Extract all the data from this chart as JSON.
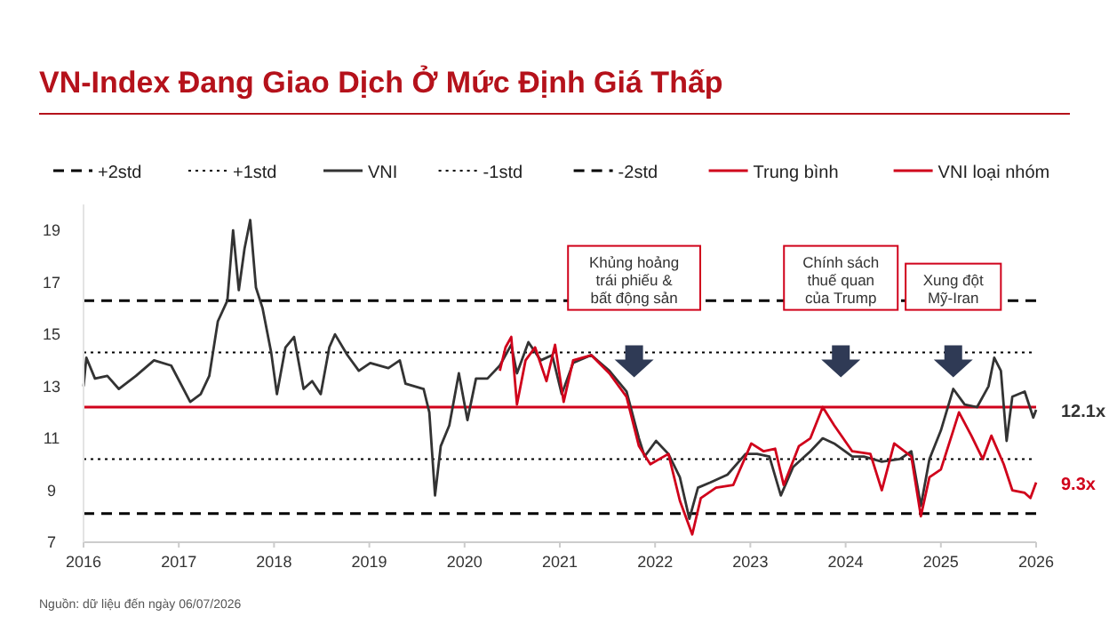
{
  "chart_data": {
    "type": "line",
    "title": "VN-Index Đang Giao Dịch Ở Mức Định Giá Thấp",
    "xlim": [
      2016,
      2026
    ],
    "xticks": [
      2016,
      2017,
      2018,
      2019,
      2020,
      2021,
      2022,
      2023,
      2024,
      2025,
      2026
    ],
    "ylim": [
      7,
      20
    ],
    "yticks": [
      7,
      9,
      11,
      13,
      15,
      17,
      19
    ],
    "grid": false,
    "legend": "top",
    "ref_lines": [
      {
        "axis": "y",
        "value": 16.3,
        "label": "+2std",
        "color": "#000000",
        "line_style": "dashed"
      },
      {
        "axis": "y",
        "value": 14.3,
        "label": "+1std",
        "color": "#000000",
        "line_style": "dotted"
      },
      {
        "axis": "y",
        "value": 10.2,
        "label": "-1std",
        "color": "#000000",
        "line_style": "dotted"
      },
      {
        "axis": "y",
        "value": 8.1,
        "label": "-2std",
        "color": "#000000",
        "line_style": "dashed"
      },
      {
        "axis": "y",
        "value": 12.2,
        "label": "Trung bình",
        "color": "#d0021b",
        "line_style": "solid"
      }
    ],
    "series": [
      {
        "name": "VNI",
        "color": "#333333",
        "x": [
          2016.0,
          2016.03,
          2016.12,
          2016.25,
          2016.37,
          2016.55,
          2016.74,
          2016.92,
          2017.12,
          2017.23,
          2017.32,
          2017.41,
          2017.51,
          2017.57,
          2017.63,
          2017.69,
          2017.75,
          2017.81,
          2017.88,
          2017.97,
          2018.03,
          2018.12,
          2018.21,
          2018.31,
          2018.4,
          2018.49,
          2018.58,
          2018.64,
          2018.77,
          2018.89,
          2019.01,
          2019.2,
          2019.32,
          2019.38,
          2019.57,
          2019.63,
          2019.69,
          2019.75,
          2019.84,
          2019.94,
          2020.03,
          2020.12,
          2020.24,
          2020.37,
          2020.49,
          2020.55,
          2020.67,
          2020.8,
          2020.92,
          2021.02,
          2021.14,
          2021.33,
          2021.52,
          2021.7,
          2021.83,
          2021.89,
          2022.01,
          2022.14,
          2022.26,
          2022.36,
          2022.45,
          2022.58,
          2022.76,
          2022.95,
          2023.07,
          2023.2,
          2023.32,
          2023.45,
          2023.63,
          2023.76,
          2023.88,
          2024.07,
          2024.19,
          2024.38,
          2024.57,
          2024.69,
          2024.79,
          2024.88,
          2025.0,
          2025.13,
          2025.25,
          2025.38,
          2025.5,
          2025.56,
          2025.63,
          2025.69,
          2025.75,
          2025.88,
          2025.97,
          2026.0
        ],
        "values": [
          13.0,
          14.1,
          13.3,
          13.4,
          12.9,
          13.4,
          14.0,
          13.8,
          12.4,
          12.7,
          13.4,
          15.5,
          16.3,
          19.0,
          16.7,
          18.3,
          19.4,
          16.8,
          16.0,
          14.3,
          12.7,
          14.5,
          14.9,
          12.9,
          13.2,
          12.7,
          14.5,
          15.0,
          14.2,
          13.6,
          13.9,
          13.7,
          14.0,
          13.1,
          12.9,
          12.0,
          8.8,
          10.7,
          11.5,
          13.5,
          11.7,
          13.3,
          13.3,
          13.8,
          14.6,
          13.5,
          14.7,
          14.0,
          14.2,
          12.7,
          13.9,
          14.2,
          13.6,
          12.8,
          11.0,
          10.3,
          10.9,
          10.4,
          9.5,
          7.9,
          9.1,
          9.3,
          9.6,
          10.4,
          10.4,
          10.3,
          8.8,
          9.9,
          10.5,
          11.0,
          10.8,
          10.3,
          10.3,
          10.1,
          10.2,
          10.5,
          8.4,
          10.2,
          11.3,
          12.9,
          12.3,
          12.2,
          13.0,
          14.1,
          13.6,
          10.9,
          12.6,
          12.8,
          11.8,
          12.1
        ]
      },
      {
        "name": "VNI loại nhóm",
        "color": "#d0021b",
        "x": [
          2020.37,
          2020.43,
          2020.49,
          2020.55,
          2020.64,
          2020.74,
          2020.86,
          2020.95,
          2021.04,
          2021.14,
          2021.33,
          2021.52,
          2021.7,
          2021.83,
          2021.95,
          2022.14,
          2022.26,
          2022.39,
          2022.48,
          2022.64,
          2022.82,
          2023.01,
          2023.14,
          2023.26,
          2023.35,
          2023.51,
          2023.63,
          2023.76,
          2023.88,
          2024.07,
          2024.26,
          2024.38,
          2024.51,
          2024.69,
          2024.79,
          2024.88,
          2025.0,
          2025.13,
          2025.19,
          2025.32,
          2025.44,
          2025.53,
          2025.66,
          2025.75,
          2025.88,
          2025.94,
          2026.0
        ],
        "values": [
          13.6,
          14.5,
          14.9,
          12.3,
          14.0,
          14.5,
          13.2,
          14.6,
          12.4,
          14.0,
          14.2,
          13.5,
          12.6,
          10.7,
          10.0,
          10.4,
          8.6,
          7.3,
          8.7,
          9.1,
          9.2,
          10.8,
          10.5,
          10.6,
          9.2,
          10.7,
          11.0,
          12.2,
          11.5,
          10.5,
          10.4,
          9.0,
          10.8,
          10.3,
          8.0,
          9.5,
          9.8,
          11.3,
          12.0,
          11.1,
          10.2,
          11.1,
          10.0,
          9.0,
          8.9,
          8.7,
          9.3
        ]
      }
    ],
    "annotations": [
      "Khủng hoảng\ntrái phiếu &\nbất động sản",
      "Chính sách\nthuế quan\ncủa Trump",
      "Xung đột\nMỹ-Iran",
      {
        "text": "12.1x",
        "x": 2026,
        "y": 12.1
      },
      {
        "text": "9.3x",
        "x": 2026,
        "y": 9.3
      },
      "Nguồn: dữ liệu đến ngày 06/07/2026"
    ]
  }
}
